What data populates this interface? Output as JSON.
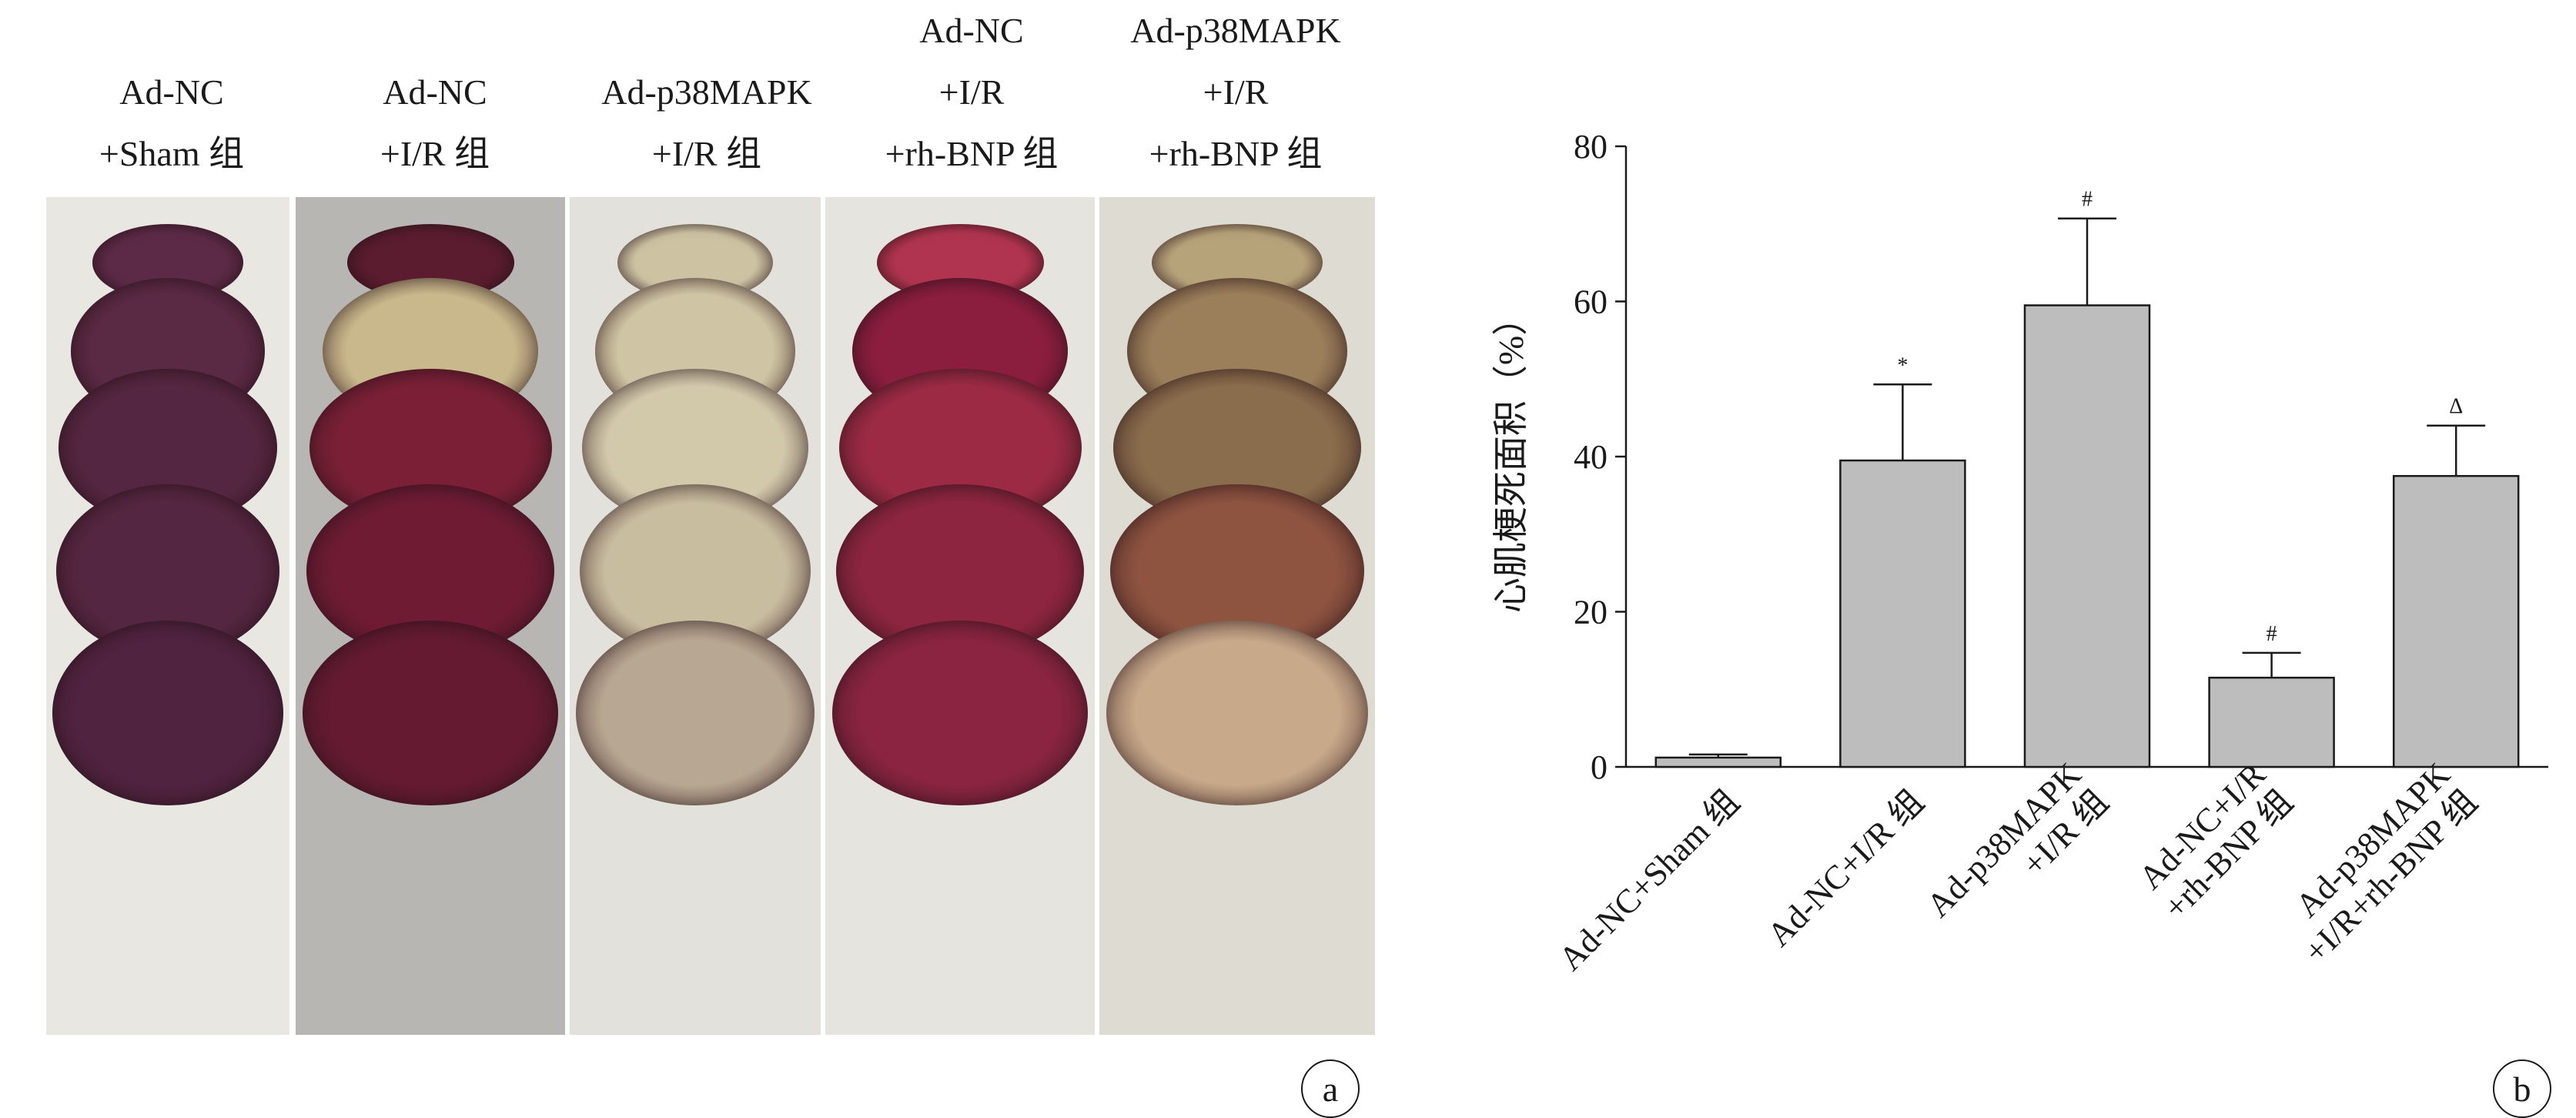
{
  "panel_a": {
    "label": "a",
    "columns": [
      {
        "lines": [
          "",
          "Ad-NC",
          "+Sham 组"
        ],
        "bg": "#e9e7e2",
        "tissue": [
          "#5c2a47",
          "#5a2944",
          "#552641",
          "#552641",
          "#502341"
        ]
      },
      {
        "lines": [
          "",
          "Ad-NC",
          "+I/R 组"
        ],
        "bg": "#b8b6b2",
        "tissue": [
          "#5a1c2e",
          "#c9b88c",
          "#7a1f36",
          "#6e1b33",
          "#651a31"
        ]
      },
      {
        "lines": [
          "",
          "Ad-p38MAPK",
          "+I/R 组"
        ],
        "bg": "#e3e1dc",
        "tissue": [
          "#cdc3a3",
          "#cfc4a3",
          "#d2c9ab",
          "#c9bda0",
          "#b8a893"
        ]
      },
      {
        "lines": [
          "Ad-NC",
          "+I/R",
          "+rh-BNP 组"
        ],
        "bg": "#e6e4df",
        "tissue": [
          "#b0344f",
          "#8b1d3e",
          "#9c2a44",
          "#8e2540",
          "#8a2440"
        ]
      },
      {
        "lines": [
          "Ad-p38MAPK",
          "+I/R",
          "+rh-BNP 组"
        ],
        "bg": "#dedbd3",
        "tissue": [
          "#b6a37a",
          "#9a7f5a",
          "#8a6d4c",
          "#8e5440",
          "#c8a98a"
        ]
      }
    ]
  },
  "panel_b": {
    "label": "b"
  },
  "chart_data": {
    "type": "bar",
    "title": "",
    "xlabel": "",
    "ylabel": "心肌梗死面积（%）",
    "ylim": [
      0,
      80
    ],
    "yticks": [
      0,
      20,
      40,
      60,
      80
    ],
    "grid": false,
    "legend": "none",
    "bar_color": "#bdbdbd",
    "categories": [
      [
        "Ad-NC+Sham 组"
      ],
      [
        "Ad-NC+I/R 组"
      ],
      [
        "Ad-p38MAPK",
        "+I/R 组"
      ],
      [
        "Ad-NC+I/R",
        "+rh-BNP 组"
      ],
      [
        "Ad-p38MAPK",
        "+I/R+rh-BNP 组"
      ]
    ],
    "values": [
      1.2,
      39.5,
      59.5,
      11.5,
      37.5
    ],
    "errors": [
      0.4,
      9.8,
      11.2,
      3.2,
      6.5
    ],
    "annotations": [
      "",
      "*",
      "#",
      "#",
      "Δ"
    ]
  }
}
